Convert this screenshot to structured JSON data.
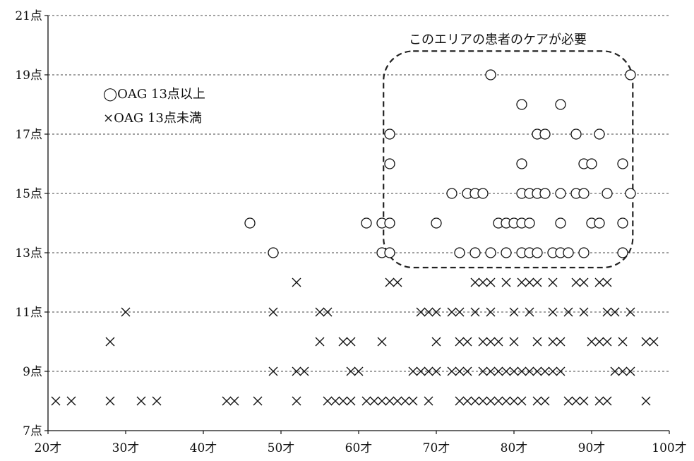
{
  "chart_data": {
    "type": "scatter",
    "xlim": [
      20,
      100
    ],
    "ylim": [
      7,
      21
    ],
    "x_tick_values": [
      20,
      30,
      40,
      50,
      60,
      70,
      80,
      90,
      100
    ],
    "x_tick_labels": [
      "20才",
      "30才",
      "40才",
      "50才",
      "60才",
      "70才",
      "80才",
      "90才",
      "100才"
    ],
    "y_tick_values": [
      7,
      9,
      11,
      13,
      15,
      17,
      19,
      21
    ],
    "y_tick_labels": [
      "7点",
      "9点",
      "11点",
      "13点",
      "15点",
      "17点",
      "19点",
      "21点"
    ],
    "grid": "horizontal dashed",
    "legend": {
      "placement": "top-left",
      "entries": [
        "◯OAG 13点以上",
        "×OAG 13点未満"
      ]
    },
    "annotation": {
      "text": "このエリアの患者のケアが必要",
      "region": {
        "x": [
          63.2,
          95.3
        ],
        "y": [
          12.5,
          19.8
        ]
      }
    },
    "series": [
      {
        "marker": "circle",
        "points": [
          [
            77,
            19
          ],
          [
            95,
            19
          ],
          [
            81,
            18
          ],
          [
            86,
            18
          ],
          [
            64,
            17
          ],
          [
            83,
            17
          ],
          [
            84,
            17
          ],
          [
            88,
            17
          ],
          [
            91,
            17
          ],
          [
            64,
            16
          ],
          [
            81,
            16
          ],
          [
            89,
            16
          ],
          [
            90,
            16
          ],
          [
            94,
            16
          ],
          [
            72,
            15
          ],
          [
            74,
            15
          ],
          [
            75,
            15
          ],
          [
            76,
            15
          ],
          [
            81,
            15
          ],
          [
            82,
            15
          ],
          [
            83,
            15
          ],
          [
            84,
            15
          ],
          [
            86,
            15
          ],
          [
            88,
            15
          ],
          [
            89,
            15
          ],
          [
            92,
            15
          ],
          [
            95,
            15
          ],
          [
            46,
            14
          ],
          [
            61,
            14
          ],
          [
            63,
            14
          ],
          [
            64,
            14
          ],
          [
            70,
            14
          ],
          [
            78,
            14
          ],
          [
            79,
            14
          ],
          [
            80,
            14
          ],
          [
            81,
            14
          ],
          [
            82,
            14
          ],
          [
            86,
            14
          ],
          [
            90,
            14
          ],
          [
            91,
            14
          ],
          [
            94,
            14
          ],
          [
            49,
            13
          ],
          [
            63,
            13
          ],
          [
            64,
            13
          ],
          [
            73,
            13
          ],
          [
            75,
            13
          ],
          [
            77,
            13
          ],
          [
            79,
            13
          ],
          [
            81,
            13
          ],
          [
            82,
            13
          ],
          [
            83,
            13
          ],
          [
            85,
            13
          ],
          [
            86,
            13
          ],
          [
            87,
            13
          ],
          [
            89,
            13
          ],
          [
            94,
            13
          ]
        ]
      },
      {
        "marker": "cross",
        "points": [
          [
            52,
            12
          ],
          [
            64,
            12
          ],
          [
            65,
            12
          ],
          [
            75,
            12
          ],
          [
            76,
            12
          ],
          [
            77,
            12
          ],
          [
            79,
            12
          ],
          [
            81,
            12
          ],
          [
            82,
            12
          ],
          [
            83,
            12
          ],
          [
            85,
            12
          ],
          [
            88,
            12
          ],
          [
            89,
            12
          ],
          [
            91,
            12
          ],
          [
            92,
            12
          ],
          [
            30,
            11
          ],
          [
            49,
            11
          ],
          [
            55,
            11
          ],
          [
            56,
            11
          ],
          [
            68,
            11
          ],
          [
            69,
            11
          ],
          [
            70,
            11
          ],
          [
            72,
            11
          ],
          [
            73,
            11
          ],
          [
            75,
            11
          ],
          [
            77,
            11
          ],
          [
            80,
            11
          ],
          [
            82,
            11
          ],
          [
            85,
            11
          ],
          [
            87,
            11
          ],
          [
            89,
            11
          ],
          [
            92,
            11
          ],
          [
            93,
            11
          ],
          [
            95,
            11
          ],
          [
            28,
            10
          ],
          [
            55,
            10
          ],
          [
            58,
            10
          ],
          [
            59,
            10
          ],
          [
            63,
            10
          ],
          [
            70,
            10
          ],
          [
            73,
            10
          ],
          [
            74,
            10
          ],
          [
            76,
            10
          ],
          [
            77,
            10
          ],
          [
            78,
            10
          ],
          [
            80,
            10
          ],
          [
            83,
            10
          ],
          [
            85,
            10
          ],
          [
            86,
            10
          ],
          [
            90,
            10
          ],
          [
            91,
            10
          ],
          [
            92,
            10
          ],
          [
            94,
            10
          ],
          [
            97,
            10
          ],
          [
            98,
            10
          ],
          [
            49,
            9
          ],
          [
            52,
            9
          ],
          [
            53,
            9
          ],
          [
            59,
            9
          ],
          [
            60,
            9
          ],
          [
            67,
            9
          ],
          [
            68,
            9
          ],
          [
            69,
            9
          ],
          [
            70,
            9
          ],
          [
            72,
            9
          ],
          [
            73,
            9
          ],
          [
            74,
            9
          ],
          [
            76,
            9
          ],
          [
            77,
            9
          ],
          [
            78,
            9
          ],
          [
            79,
            9
          ],
          [
            80,
            9
          ],
          [
            81,
            9
          ],
          [
            82,
            9
          ],
          [
            83,
            9
          ],
          [
            84,
            9
          ],
          [
            85,
            9
          ],
          [
            86,
            9
          ],
          [
            93,
            9
          ],
          [
            94,
            9
          ],
          [
            95,
            9
          ],
          [
            21,
            8
          ],
          [
            23,
            8
          ],
          [
            28,
            8
          ],
          [
            32,
            8
          ],
          [
            34,
            8
          ],
          [
            43,
            8
          ],
          [
            44,
            8
          ],
          [
            47,
            8
          ],
          [
            52,
            8
          ],
          [
            56,
            8
          ],
          [
            57,
            8
          ],
          [
            58,
            8
          ],
          [
            59,
            8
          ],
          [
            61,
            8
          ],
          [
            62,
            8
          ],
          [
            63,
            8
          ],
          [
            64,
            8
          ],
          [
            65,
            8
          ],
          [
            66,
            8
          ],
          [
            67,
            8
          ],
          [
            69,
            8
          ],
          [
            73,
            8
          ],
          [
            74,
            8
          ],
          [
            75,
            8
          ],
          [
            76,
            8
          ],
          [
            77,
            8
          ],
          [
            78,
            8
          ],
          [
            79,
            8
          ],
          [
            80,
            8
          ],
          [
            81,
            8
          ],
          [
            83,
            8
          ],
          [
            84,
            8
          ],
          [
            87,
            8
          ],
          [
            88,
            8
          ],
          [
            89,
            8
          ],
          [
            91,
            8
          ],
          [
            92,
            8
          ],
          [
            97,
            8
          ]
        ]
      }
    ]
  }
}
